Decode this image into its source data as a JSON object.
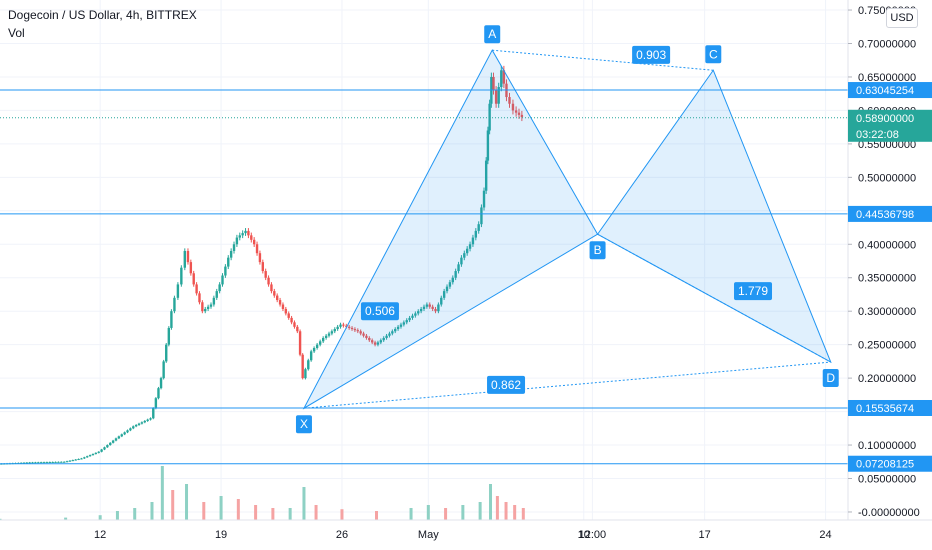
{
  "header": {
    "title": "Dogecoin / US Dollar, 4h, BITTREX",
    "indicator": "Vol",
    "currency_button": "USD"
  },
  "chart_data": {
    "type": "candlestick",
    "title": "Dogecoin / US Dollar, 4h, BITTREX",
    "y_ticks": [
      "0.75000000",
      "0.70000000",
      "0.65000000",
      "0.60000000",
      "0.55000000",
      "0.50000000",
      "0.45000000",
      "0.40000000",
      "0.35000000",
      "0.30000000",
      "0.25000000",
      "0.20000000",
      "0.15000000",
      "0.10000000",
      "0.05000000",
      "-0.00000000"
    ],
    "ylim": [
      -0.012,
      0.765
    ],
    "x_ticks": [
      {
        "label": "12",
        "day": 12
      },
      {
        "label": "19",
        "day": 19
      },
      {
        "label": "26",
        "day": 26
      },
      {
        "label": "May",
        "day": 31
      },
      {
        "label": "12:00",
        "day": 40.5
      },
      {
        "label": "10",
        "day": 40
      },
      {
        "label": "17",
        "day": 47
      },
      {
        "label": "24",
        "day": 54
      }
    ],
    "xlim": [
      6.2,
      55.3
    ],
    "horizontal_levels": [
      {
        "value": 0.63045254,
        "label": "0.63045254"
      },
      {
        "value": 0.44536798,
        "label": "0.44536798"
      },
      {
        "value": 0.15535674,
        "label": "0.15535674"
      },
      {
        "value": 0.07208125,
        "label": "0.07208125"
      }
    ],
    "current_price": {
      "value": 0.589,
      "label": "0.58900000",
      "countdown": "03:22:08"
    },
    "pattern": {
      "points": [
        {
          "name": "X",
          "day": 23.8,
          "price": 0.155
        },
        {
          "name": "A",
          "day": 34.7,
          "price": 0.69
        },
        {
          "name": "B",
          "day": 40.8,
          "price": 0.415
        },
        {
          "name": "C",
          "day": 47.5,
          "price": 0.66
        },
        {
          "name": "D",
          "day": 54.3,
          "price": 0.224
        }
      ],
      "ratios": [
        {
          "value": "0.903",
          "day": 43.9,
          "price": 0.683
        },
        {
          "value": "0.506",
          "day": 28.2,
          "price": 0.3
        },
        {
          "value": "1.779",
          "day": 49.8,
          "price": 0.33
        },
        {
          "value": "0.862",
          "day": 35.5,
          "price": 0.19
        }
      ]
    },
    "price_series": [
      [
        6.2,
        0.072
      ],
      [
        8,
        0.074
      ],
      [
        10,
        0.075
      ],
      [
        11,
        0.08
      ],
      [
        12,
        0.09
      ],
      [
        13,
        0.11
      ],
      [
        14,
        0.128
      ],
      [
        15,
        0.14
      ],
      [
        15.6,
        0.2
      ],
      [
        16.2,
        0.3
      ],
      [
        16.6,
        0.34
      ],
      [
        17,
        0.39
      ],
      [
        17.5,
        0.34
      ],
      [
        18,
        0.3
      ],
      [
        18.5,
        0.31
      ],
      [
        19,
        0.34
      ],
      [
        19.5,
        0.38
      ],
      [
        20,
        0.41
      ],
      [
        20.5,
        0.42
      ],
      [
        21,
        0.4
      ],
      [
        21.5,
        0.36
      ],
      [
        22,
        0.33
      ],
      [
        22.5,
        0.31
      ],
      [
        23,
        0.29
      ],
      [
        23.5,
        0.27
      ],
      [
        23.8,
        0.2
      ],
      [
        24.3,
        0.24
      ],
      [
        25,
        0.26
      ],
      [
        26,
        0.28
      ],
      [
        27,
        0.27
      ],
      [
        28,
        0.25
      ],
      [
        29,
        0.27
      ],
      [
        30,
        0.29
      ],
      [
        31,
        0.31
      ],
      [
        31.5,
        0.3
      ],
      [
        32,
        0.33
      ],
      [
        32.5,
        0.35
      ],
      [
        33,
        0.38
      ],
      [
        33.5,
        0.4
      ],
      [
        34,
        0.43
      ],
      [
        34.3,
        0.48
      ],
      [
        34.5,
        0.57
      ],
      [
        34.7,
        0.65
      ],
      [
        35,
        0.61
      ],
      [
        35.3,
        0.66
      ],
      [
        35.6,
        0.62
      ],
      [
        36,
        0.6
      ],
      [
        36.5,
        0.59
      ]
    ],
    "volume_series": [
      [
        6.2,
        0.002
      ],
      [
        10,
        0.004
      ],
      [
        12,
        0.008
      ],
      [
        13,
        0.015
      ],
      [
        14,
        0.02
      ],
      [
        15,
        0.03
      ],
      [
        15.6,
        0.09
      ],
      [
        16.2,
        0.05
      ],
      [
        17,
        0.06
      ],
      [
        18,
        0.03
      ],
      [
        19,
        0.04
      ],
      [
        20,
        0.035
      ],
      [
        21,
        0.025
      ],
      [
        22,
        0.02
      ],
      [
        23,
        0.02
      ],
      [
        23.8,
        0.055
      ],
      [
        24.5,
        0.025
      ],
      [
        26,
        0.018
      ],
      [
        28,
        0.015
      ],
      [
        30,
        0.02
      ],
      [
        31,
        0.025
      ],
      [
        32,
        0.02
      ],
      [
        33,
        0.025
      ],
      [
        34,
        0.03
      ],
      [
        34.6,
        0.06
      ],
      [
        35,
        0.04
      ],
      [
        35.5,
        0.03
      ],
      [
        36,
        0.025
      ],
      [
        36.5,
        0.02
      ]
    ]
  }
}
